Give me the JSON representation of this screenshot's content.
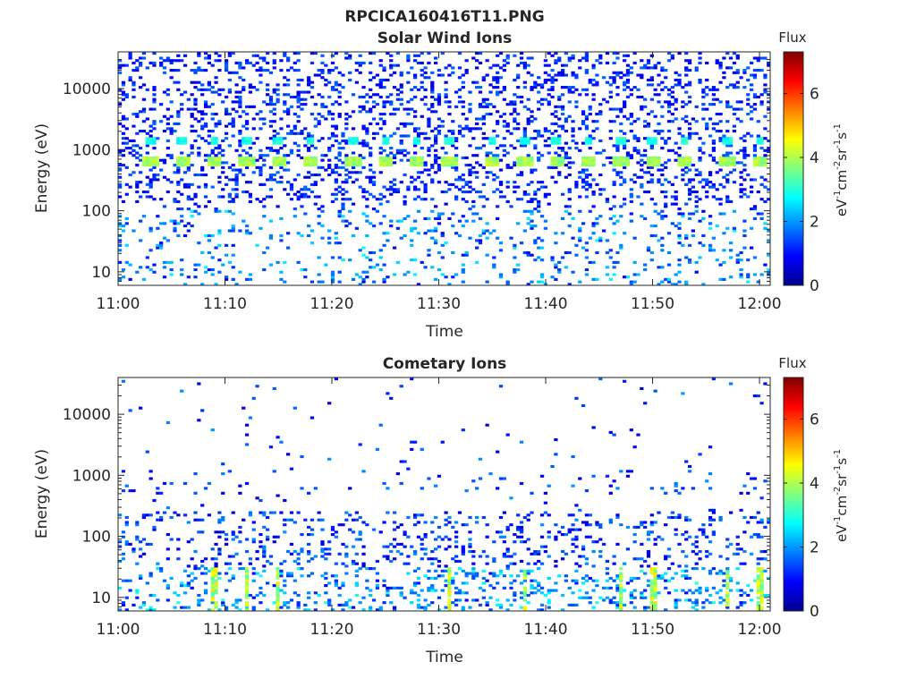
{
  "figure_title": "RPCICA160416T11.PNG",
  "colors": {
    "colormap": [
      "#00008f",
      "#0000ff",
      "#007fff",
      "#00ffff",
      "#7fff7f",
      "#ffff00",
      "#ff7f00",
      "#ff0000",
      "#7f0000"
    ],
    "background": "#ffffff",
    "axis": "#262626"
  },
  "chart_data": [
    {
      "type": "heatmap",
      "title": "Solar Wind Ions",
      "xlabel": "Time",
      "ylabel": "Energy (eV)",
      "x_ticks": [
        "11:00",
        "11:10",
        "11:20",
        "11:30",
        "11:40",
        "11:50",
        "12:00"
      ],
      "xlim": [
        "11:00",
        "12:01"
      ],
      "y_ticks": [
        10,
        100,
        1000,
        10000
      ],
      "y_tick_labels": [
        "10",
        "100",
        "1000",
        "10000"
      ],
      "ylim": [
        6,
        40000
      ],
      "y_scale": "log",
      "colorbar": {
        "label": "eV-1cm-2sr-1s-1",
        "title": "Flux",
        "ticks": [
          0,
          2,
          4,
          6
        ],
        "range": [
          0,
          7.3
        ]
      },
      "peak_energy_eV": 650,
      "secondary_energy_eV": 1400,
      "peak_flux": 4.3,
      "peak_times": [
        "11:03",
        "11:06",
        "11:09",
        "11:12",
        "11:15",
        "11:18",
        "11:22",
        "11:25",
        "11:28",
        "11:31",
        "11:35",
        "11:38",
        "11:41",
        "11:44",
        "11:47",
        "11:50",
        "11:53",
        "11:57",
        "12:00"
      ],
      "background_flux": 1.0
    },
    {
      "type": "heatmap",
      "title": "Cometary Ions",
      "xlabel": "Time",
      "ylabel": "Energy (eV)",
      "x_ticks": [
        "11:00",
        "11:10",
        "11:20",
        "11:30",
        "11:40",
        "11:50",
        "12:00"
      ],
      "xlim": [
        "11:00",
        "12:01"
      ],
      "y_ticks": [
        10,
        100,
        1000,
        10000
      ],
      "y_tick_labels": [
        "10",
        "100",
        "1000",
        "10000"
      ],
      "ylim": [
        6,
        40000
      ],
      "y_scale": "log",
      "colorbar": {
        "label": "eV-1cm-2sr-1s-1",
        "title": "Flux",
        "ticks": [
          0,
          2,
          4,
          6
        ],
        "range": [
          0,
          7.3
        ]
      },
      "low_energy_band_eV": [
        8,
        30
      ],
      "low_energy_peak_flux": 4.8,
      "bright_times": [
        "11:09",
        "11:12",
        "11:15",
        "11:31",
        "11:38",
        "11:47",
        "11:50",
        "11:57",
        "12:00"
      ],
      "background_flux": 1.2
    }
  ]
}
